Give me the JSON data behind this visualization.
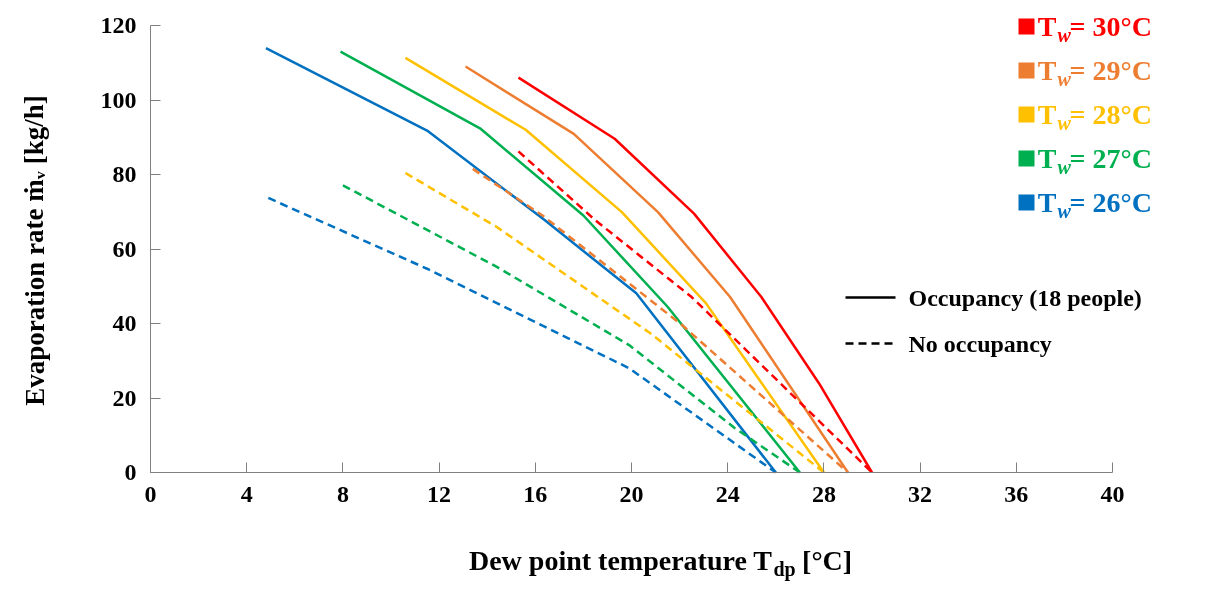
{
  "chart_data": {
    "type": "line",
    "xlabel": "Dew point temperature T$_{dp}$ [°C]",
    "ylabel": "Evaporation rate ṁᵥ [kg/h]",
    "xlim": [
      0,
      40
    ],
    "xticks": [
      0,
      4,
      8,
      12,
      16,
      20,
      24,
      28,
      32,
      36,
      40
    ],
    "ylim": [
      0,
      120
    ],
    "yticks": [
      0,
      20,
      40,
      60,
      80,
      100,
      120
    ],
    "legend": "top right",
    "annotations": [
      "Occupancy (18 people)",
      "No occupancy"
    ],
    "series": [
      {
        "name": "T$_{w}$= 30°C",
        "color": "#ff0000",
        "line_style": "solid",
        "x": [
          15.3,
          19.3,
          22.6,
          25.4,
          27.8,
          30.0
        ],
        "values": [
          106,
          89.6,
          69.5,
          47.1,
          23.9,
          0
        ]
      },
      {
        "name": "T$_{w}$= 29°C",
        "color": "#ed7d31",
        "line_style": "solid",
        "x": [
          13.1,
          17.6,
          21.1,
          24.1,
          29.0
        ],
        "values": [
          109,
          90.9,
          69.9,
          47.1,
          0
        ]
      },
      {
        "name": "T$_{w}$= 28°C",
        "color": "#ffc000",
        "line_style": "solid",
        "x": [
          10.6,
          15.6,
          19.6,
          23.1,
          28.0
        ],
        "values": [
          111.3,
          92,
          69.9,
          45.4,
          0
        ]
      },
      {
        "name": "T$_{w}$= 27°C",
        "color": "#00b050",
        "line_style": "solid",
        "x": [
          7.9,
          13.7,
          18.0,
          21.5,
          27.0
        ],
        "values": [
          113,
          92.4,
          69,
          44.5,
          0
        ]
      },
      {
        "name": "T$_{w}$= 26°C",
        "color": "#0070c0",
        "line_style": "solid",
        "x": [
          4.8,
          11.5,
          16.4,
          20.2,
          26.0
        ],
        "values": [
          113.9,
          91.8,
          67.7,
          48.1,
          0
        ]
      },
      {
        "color": "#ff0000",
        "line_style": "dashed",
        "x": [
          15.3,
          18.5,
          22.5,
          30.0
        ],
        "values": [
          86.2,
          67.7,
          47.1,
          0
        ]
      },
      {
        "color": "#ed7d31",
        "line_style": "dashed",
        "x": [
          13.4,
          16.3,
          22.1,
          29.0
        ],
        "values": [
          81.5,
          69,
          39.6,
          0
        ]
      },
      {
        "color": "#ffc000",
        "line_style": "dashed",
        "x": [
          10.6,
          14.4,
          20.8,
          28.0
        ],
        "values": [
          80.4,
          65.9,
          37.3,
          0
        ]
      },
      {
        "color": "#00b050",
        "line_style": "dashed",
        "x": [
          8.0,
          14.4,
          19.9,
          24.3,
          27.0
        ],
        "values": [
          77.1,
          55.2,
          34.2,
          11.9,
          0
        ]
      },
      {
        "color": "#0070c0",
        "line_style": "dashed",
        "x": [
          4.9,
          11.5,
          19.9,
          26.0
        ],
        "values": [
          73.7,
          54.7,
          28,
          0
        ]
      }
    ]
  }
}
